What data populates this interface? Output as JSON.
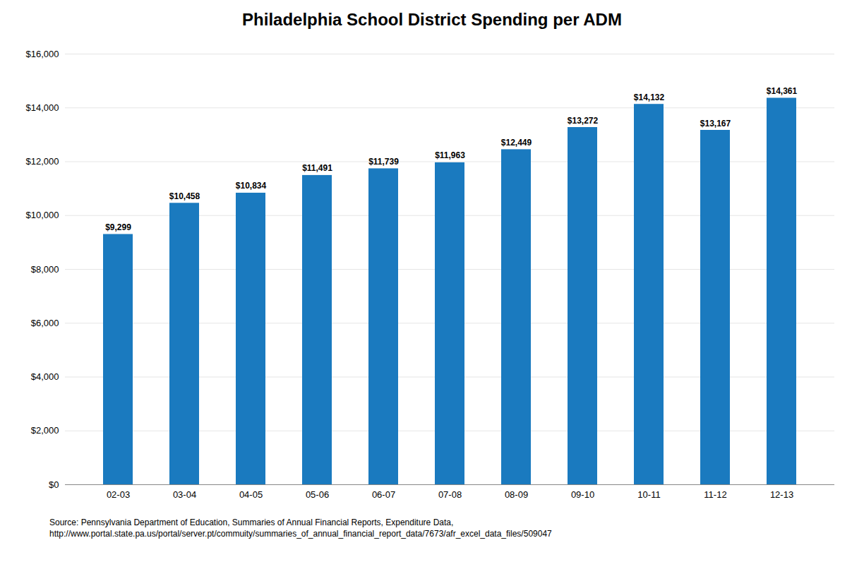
{
  "chart_data": {
    "type": "bar",
    "title": "Philadelphia School District Spending per ADM",
    "categories": [
      "02-03",
      "03-04",
      "04-05",
      "05-06",
      "06-07",
      "07-08",
      "08-09",
      "09-10",
      "10-11",
      "11-12",
      "12-13"
    ],
    "values": [
      9299,
      10458,
      10834,
      11491,
      11739,
      11963,
      12449,
      13272,
      14132,
      13167,
      14361
    ],
    "value_labels": [
      "$9,299",
      "$10,458",
      "$10,834",
      "$11,491",
      "$11,739",
      "$11,963",
      "$12,449",
      "$13,272",
      "$14,132",
      "$13,167",
      "$14,361"
    ],
    "data_labels": true,
    "color": "#1a7abf",
    "ylim": [
      0,
      16000
    ],
    "yticks": [
      {
        "value": 0,
        "label": "$0"
      },
      {
        "value": 2000,
        "label": "$2,000"
      },
      {
        "value": 4000,
        "label": "$4,000"
      },
      {
        "value": 6000,
        "label": "$6,000"
      },
      {
        "value": 8000,
        "label": "$8,000"
      },
      {
        "value": 10000,
        "label": "$10,000"
      },
      {
        "value": 12000,
        "label": "$12,000"
      },
      {
        "value": 14000,
        "label": "$14,000"
      },
      {
        "value": 16000,
        "label": "$16,000"
      }
    ],
    "grid": true,
    "annotations": [
      "Source: Pennsylvania Department of Education, Summaries of Annual Financial Reports, Expenditure Data,\nhttp://www.portal.state.pa.us/portal/server.pt/commuity/summaries_of_annual_financial_report_data/7673/afr_excel_data_files/509047"
    ]
  }
}
